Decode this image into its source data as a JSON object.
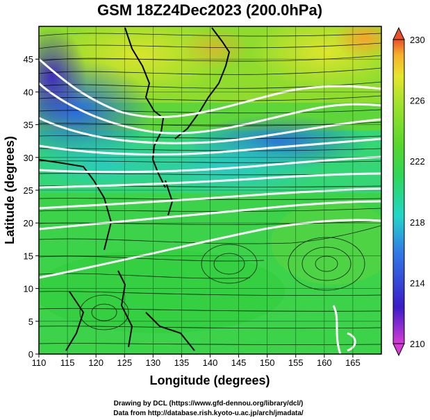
{
  "title": "GSM 18Z24Dec2023 (200.0hPa)",
  "map": {
    "xlabel": "Longitude (degrees)",
    "ylabel": "Latitude  (degrees)",
    "lon_range": [
      110,
      170
    ],
    "lat_range": [
      0,
      50
    ],
    "x_ticks": [
      "110",
      "115",
      "120",
      "125",
      "130",
      "135",
      "140",
      "145",
      "150",
      "155",
      "160",
      "165"
    ],
    "y_ticks": [
      "0",
      "5",
      "10",
      "15",
      "20",
      "25",
      "30",
      "35",
      "40",
      "45"
    ],
    "grid": true
  },
  "colorbar": {
    "range": [
      210,
      230
    ],
    "labels": [
      "230",
      "226",
      "222",
      "218",
      "214",
      "210"
    ],
    "colors": [
      "#d63bd6",
      "#3a1cc8",
      "#2f7ae6",
      "#22d6c8",
      "#2ed65a",
      "#55d62c",
      "#9be22c",
      "#e6e62c",
      "#f5b02c",
      "#e8502a"
    ]
  },
  "credits": {
    "line1": "Drawing by DCL (https://www.gfd-dennou.org/library/dcl/)",
    "line2": "Data from http://database.rish.kyoto-u.ac.jp/arch/jmadata/"
  }
}
